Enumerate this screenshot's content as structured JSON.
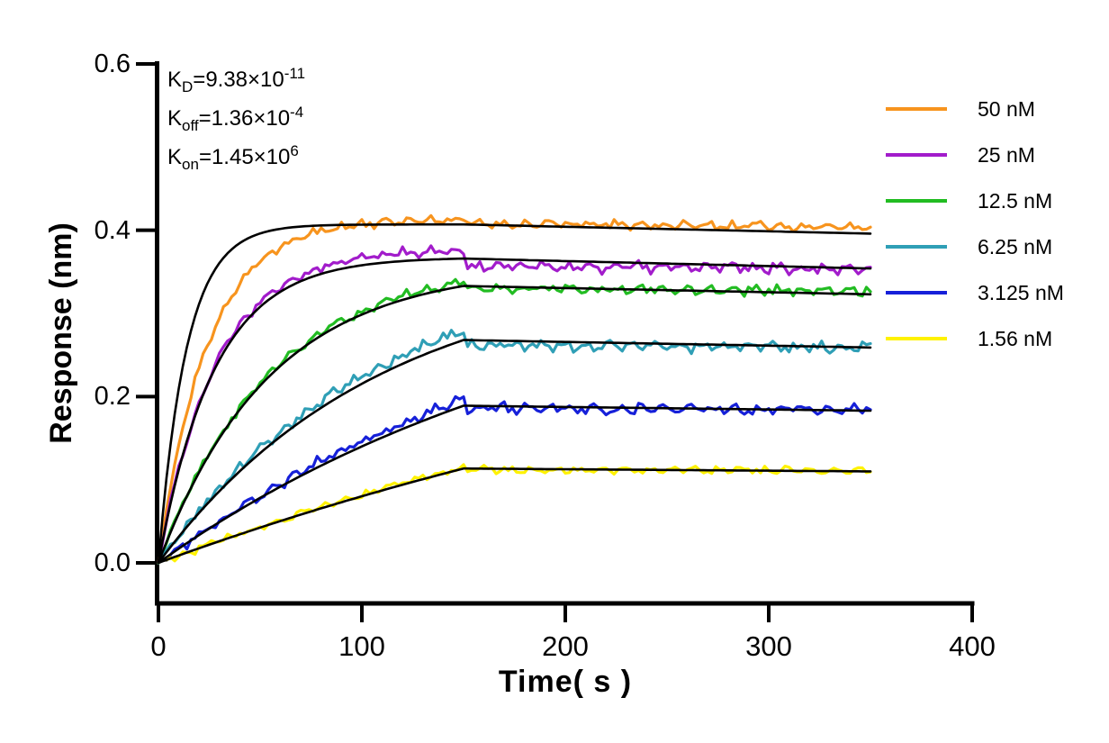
{
  "chart_data": {
    "type": "line",
    "title": "",
    "xlabel": "Time( s )",
    "ylabel": "Response (nm)",
    "xlim": [
      0,
      400
    ],
    "ylim": [
      0,
      0.6
    ],
    "grid": false,
    "legend_position": "right-outside",
    "x_ticks": [
      "0",
      "100",
      "200",
      "300",
      "400"
    ],
    "x_tick_values": [
      0,
      100,
      200,
      300,
      400
    ],
    "y_ticks": [
      "0.0",
      "0.2",
      "0.4",
      "0.6"
    ],
    "y_tick_values": [
      0,
      0.2,
      0.4,
      0.6
    ],
    "annotations": [
      {
        "base": "K",
        "sub": "D",
        "value": "=9.38×10",
        "exponent": "-11"
      },
      {
        "base": "K",
        "sub": "off",
        "value": "=1.36×10",
        "exponent": "-4"
      },
      {
        "base": "K",
        "sub": "on",
        "value": "=1.45×10",
        "exponent": "6"
      }
    ],
    "kinetics": {
      "kd": "9.38×10-11",
      "koff": "1.36×10-4",
      "kon": "1.45×10+6",
      "koff_per_s": 0.000136
    },
    "phases": {
      "association_start_s": 0,
      "association_end_s": 150,
      "dissociation_end_s": 350
    },
    "fit_color": "#000000",
    "axis_color": "#000000",
    "series": [
      {
        "label": "50 nM",
        "concentration_nM": 50,
        "color": "#F7941E",
        "observed": {
          "tau_s": 24,
          "assoc_end": 0.413,
          "dissoc_start": 0.408,
          "dissoc_end": 0.404,
          "noise": 0.005,
          "seed": 11
        },
        "fit": {
          "tau_s": 13.8,
          "assoc_end": 0.407,
          "dissoc_end": 0.396
        }
      },
      {
        "label": "25 nM",
        "concentration_nM": 25,
        "color": "#A21CCB",
        "observed": {
          "tau_s": 28,
          "assoc_end": 0.376,
          "dissoc_start": 0.357,
          "dissoc_end": 0.354,
          "noise": 0.006,
          "seed": 22
        },
        "fit": {
          "tau_s": 27.5,
          "assoc_end": 0.366,
          "dissoc_end": 0.354
        }
      },
      {
        "label": "12.5 nM",
        "concentration_nM": 12.5,
        "color": "#22BC22",
        "observed": {
          "tau_s": 55,
          "assoc_end": 0.337,
          "dissoc_start": 0.33,
          "dissoc_end": 0.327,
          "noise": 0.005,
          "seed": 33
        },
        "fit": {
          "tau_s": 54.8,
          "assoc_end": 0.333,
          "dissoc_end": 0.323
        }
      },
      {
        "label": "6.25 nM",
        "concentration_nM": 6.25,
        "color": "#2F9FB6",
        "observed": {
          "tau_s": 109,
          "assoc_end": 0.279,
          "dissoc_start": 0.262,
          "dissoc_end": 0.259,
          "noise": 0.006,
          "seed": 44
        },
        "fit": {
          "tau_s": 108.7,
          "assoc_end": 0.268,
          "dissoc_end": 0.259
        }
      },
      {
        "label": "3.125 nM",
        "concentration_nM": 3.125,
        "color": "#1620D9",
        "observed": {
          "tau_s": 214,
          "assoc_end": 0.197,
          "dissoc_start": 0.186,
          "dissoc_end": 0.184,
          "noise": 0.006,
          "seed": 55
        },
        "fit": {
          "tau_s": 214,
          "assoc_end": 0.189,
          "dissoc_end": 0.183
        }
      },
      {
        "label": "1.56 nM",
        "concentration_nM": 1.56,
        "color": "#FFF200",
        "observed": {
          "tau_s": 417,
          "assoc_end": 0.116,
          "dissoc_start": 0.1125,
          "dissoc_end": 0.111,
          "noise": 0.004,
          "seed": 66
        },
        "fit": {
          "tau_s": 417,
          "assoc_end": 0.1135,
          "dissoc_end": 0.11
        }
      }
    ]
  }
}
